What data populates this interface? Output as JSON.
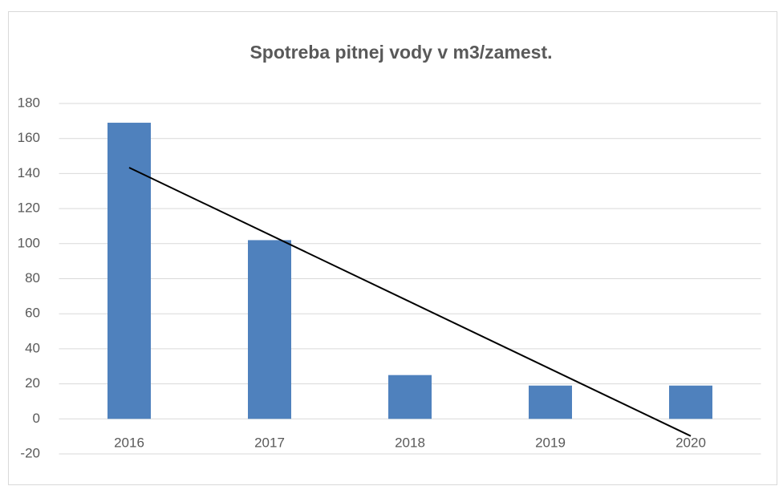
{
  "chart_data": {
    "type": "bar",
    "title": "Spotreba pitnej vody v m3/zamest.",
    "categories": [
      "2016",
      "2017",
      "2018",
      "2019",
      "2020"
    ],
    "values": [
      169,
      102,
      25,
      19,
      19
    ],
    "color": "#4f81bd",
    "ylim": [
      -20,
      180
    ],
    "yticks": [
      -20,
      0,
      20,
      40,
      60,
      80,
      100,
      120,
      140,
      160,
      180
    ],
    "grid": true,
    "trendline": {
      "color": "#000000",
      "values": [
        143.4,
        -9.8
      ]
    }
  }
}
